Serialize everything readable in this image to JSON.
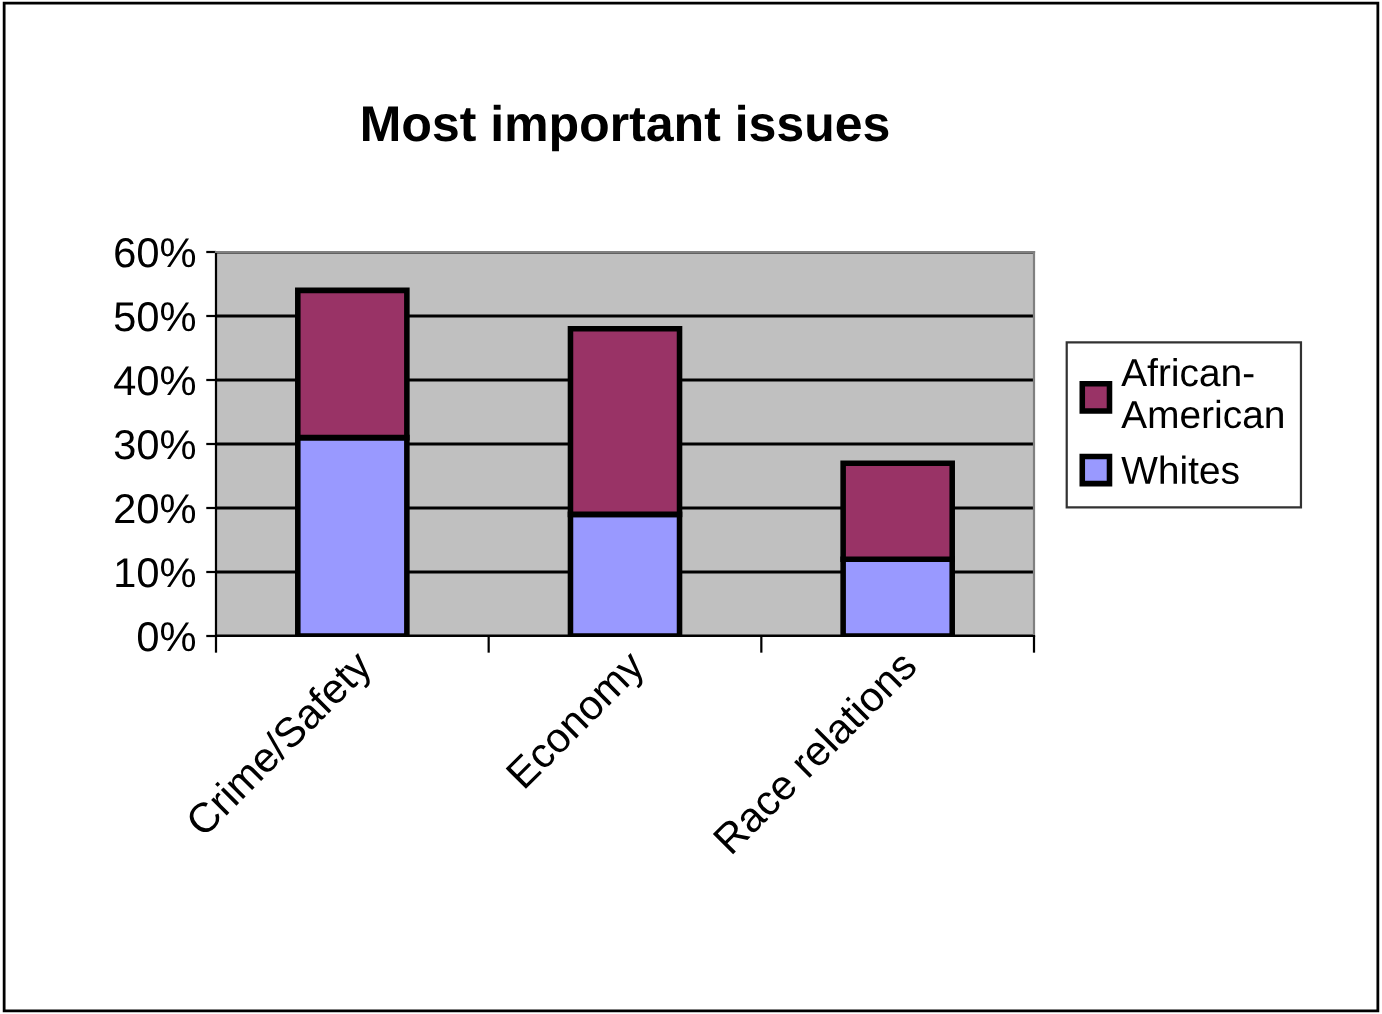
{
  "chart_data": {
    "type": "bar",
    "title": "Most important issues",
    "categories": [
      "Crime/Safety",
      "Economy",
      "Race relations"
    ],
    "stacked": true,
    "series": [
      {
        "name": "Whites",
        "color": "#9999ff",
        "values": [
          31,
          19,
          12
        ]
      },
      {
        "name": "African-American",
        "color": "#993366",
        "values": [
          23,
          29,
          15
        ]
      }
    ],
    "ylim": [
      0,
      60
    ],
    "yticks": [
      {
        "value": 0,
        "label": "0%"
      },
      {
        "value": 10,
        "label": "10%"
      },
      {
        "value": 20,
        "label": "20%"
      },
      {
        "value": 30,
        "label": "30%"
      },
      {
        "value": 40,
        "label": "40%"
      },
      {
        "value": 50,
        "label": "50%"
      },
      {
        "value": 60,
        "label": "60%"
      }
    ],
    "grid": "y",
    "legend": "right"
  }
}
